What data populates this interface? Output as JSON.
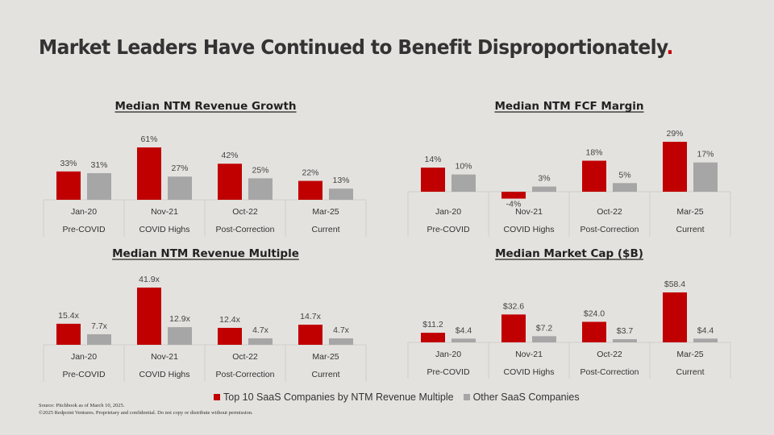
{
  "page": {
    "title": "Market Leaders Have Continued to Benefit Disproportionately",
    "title_accent": ".",
    "colors": {
      "top10": "#c00000",
      "other": "#a6a6a6",
      "background": "#e4e2df",
      "grid": "#d0cecb"
    }
  },
  "legend": {
    "items": [
      {
        "label": "Top 10 SaaS Companies by NTM Revenue Multiple",
        "color": "#c00000"
      },
      {
        "label": "Other SaaS Companies",
        "color": "#a6a6a6"
      }
    ],
    "placement": "bottom"
  },
  "footer": {
    "source": "Source: Pitchbook as of March 10, 2025.",
    "copyright": "©2025 Redpoint Ventures. Proprietary and confidential. Do not copy or distribute without permission."
  },
  "chart_data": [
    {
      "type": "bar",
      "title": "Median NTM Revenue Growth",
      "categories": [
        "Jan-20",
        "Nov-21",
        "Oct-22",
        "Mar-25"
      ],
      "subcategories": [
        "Pre-COVID",
        "COVID Highs",
        "Post-Correction",
        "Current"
      ],
      "series": [
        {
          "name": "Top 10 SaaS Companies by NTM Revenue Multiple",
          "values": [
            33,
            61,
            42,
            22
          ],
          "labels": [
            "33%",
            "61%",
            "42%",
            "22%"
          ]
        },
        {
          "name": "Other SaaS Companies",
          "values": [
            31,
            27,
            25,
            13
          ],
          "labels": [
            "31%",
            "27%",
            "25%",
            "13%"
          ]
        }
      ],
      "unit": "%",
      "xlabel": "",
      "ylabel": "",
      "ylim": [
        0,
        61
      ],
      "grid": false
    },
    {
      "type": "bar",
      "title": "Median NTM FCF Margin",
      "categories": [
        "Jan-20",
        "Nov-21",
        "Oct-22",
        "Mar-25"
      ],
      "subcategories": [
        "Pre-COVID",
        "COVID Highs",
        "Post-Correction",
        "Current"
      ],
      "series": [
        {
          "name": "Top 10 SaaS Companies by NTM Revenue Multiple",
          "values": [
            14,
            -4,
            18,
            29
          ],
          "labels": [
            "14%",
            "-4%",
            "18%",
            "29%"
          ]
        },
        {
          "name": "Other SaaS Companies",
          "values": [
            10,
            3,
            5,
            17
          ],
          "labels": [
            "10%",
            "3%",
            "5%",
            "17%"
          ]
        }
      ],
      "unit": "%",
      "xlabel": "",
      "ylabel": "",
      "ylim": [
        -4,
        29
      ],
      "grid": false
    },
    {
      "type": "bar",
      "title": "Median NTM Revenue Multiple",
      "categories": [
        "Jan-20",
        "Nov-21",
        "Oct-22",
        "Mar-25"
      ],
      "subcategories": [
        "Pre-COVID",
        "COVID Highs",
        "Post-Correction",
        "Current"
      ],
      "series": [
        {
          "name": "Top 10 SaaS Companies by NTM Revenue Multiple",
          "values": [
            15.4,
            41.9,
            12.4,
            14.7
          ],
          "labels": [
            "15.4x",
            "41.9x",
            "12.4x",
            "14.7x"
          ]
        },
        {
          "name": "Other SaaS Companies",
          "values": [
            7.7,
            12.9,
            4.7,
            4.7
          ],
          "labels": [
            "7.7x",
            "12.9x",
            "4.7x",
            "4.7x"
          ]
        }
      ],
      "unit": "x",
      "xlabel": "",
      "ylabel": "",
      "ylim": [
        0,
        41.9
      ],
      "grid": false
    },
    {
      "type": "bar",
      "title": "Median Market Cap ($B)",
      "categories": [
        "Jan-20",
        "Nov-21",
        "Oct-22",
        "Mar-25"
      ],
      "subcategories": [
        "Pre-COVID",
        "COVID Highs",
        "Post-Correction",
        "Current"
      ],
      "series": [
        {
          "name": "Top 10 SaaS Companies by NTM Revenue Multiple",
          "values": [
            11.2,
            32.6,
            24.0,
            58.4
          ],
          "labels": [
            "$11.2",
            "$32.6",
            "$24.0",
            "$58.4"
          ]
        },
        {
          "name": "Other SaaS Companies",
          "values": [
            4.4,
            7.2,
            3.7,
            4.4
          ],
          "labels": [
            "$4.4",
            "$7.2",
            "$3.7",
            "$4.4"
          ]
        }
      ],
      "unit": "$B",
      "xlabel": "",
      "ylabel": "",
      "ylim": [
        0,
        58.4
      ],
      "grid": false
    }
  ]
}
